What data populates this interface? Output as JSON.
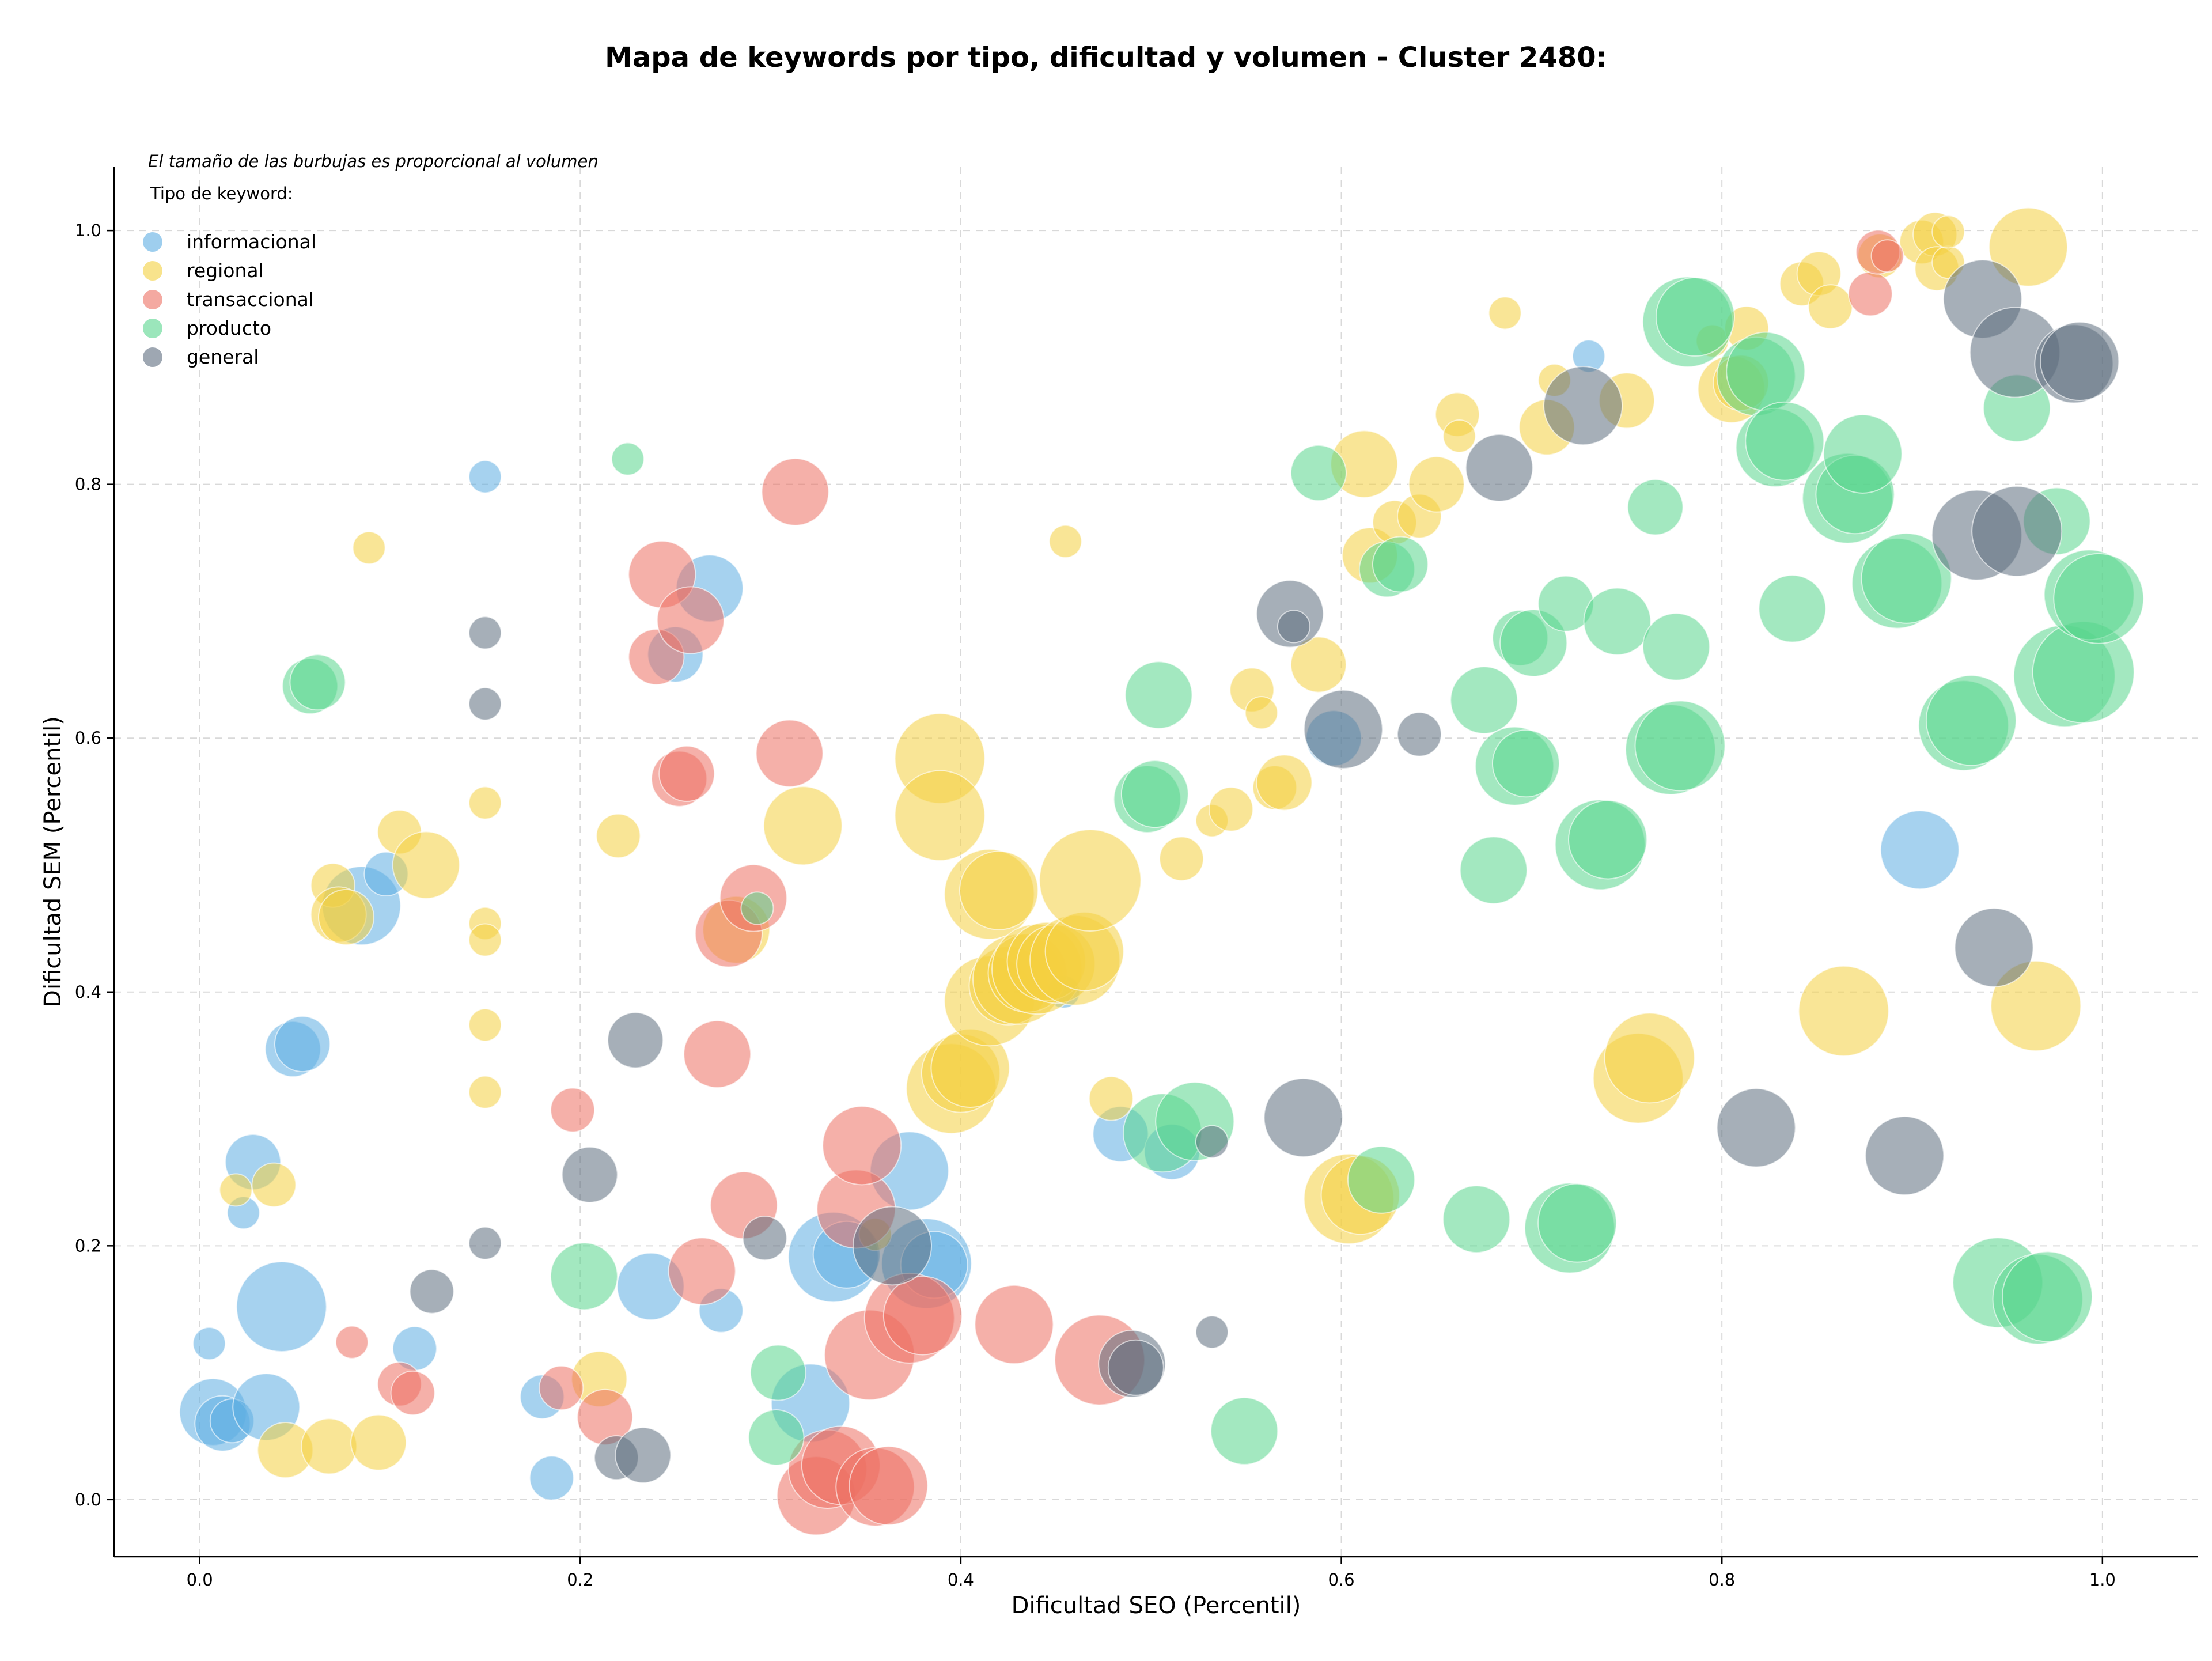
{
  "chart_data": {
    "type": "scatter",
    "title": "Mapa de keywords por tipo, dificultad y volumen - Cluster 2480:",
    "xlabel": "Dificultad SEO (Percentil)",
    "ylabel": "Dificultad SEM (Percentil)",
    "xlim": [
      -0.045,
      1.05
    ],
    "ylim": [
      -0.045,
      1.05
    ],
    "xticks": [
      "0.0",
      "0.2",
      "0.4",
      "0.6",
      "0.8",
      "1.0"
    ],
    "yticks": [
      "0.0",
      "0.2",
      "0.4",
      "0.6",
      "0.8",
      "1.0"
    ],
    "grid": true,
    "note": "El tamaño de las burbujas es proporcional al volumen",
    "legend_title": "Tipo de keyword:",
    "legend_position": "top-left",
    "series": [
      {
        "name": "informacional",
        "color": "#5dade2",
        "points": [
          [
            0.005,
            0.123,
            1
          ],
          [
            0.007,
            0.069,
            4
          ],
          [
            0.012,
            0.06,
            3
          ],
          [
            0.017,
            0.062,
            2
          ],
          [
            0.023,
            0.226,
            1
          ],
          [
            0.028,
            0.266,
            3
          ],
          [
            0.035,
            0.073,
            4
          ],
          [
            0.043,
            0.152,
            6
          ],
          [
            0.049,
            0.355,
            3
          ],
          [
            0.054,
            0.359,
            3
          ],
          [
            0.085,
            0.468,
            5
          ],
          [
            0.098,
            0.493,
            2
          ],
          [
            0.113,
            0.119,
            2
          ],
          [
            0.15,
            0.806,
            1
          ],
          [
            0.18,
            0.081,
            2
          ],
          [
            0.185,
            0.017,
            2
          ],
          [
            0.237,
            0.168,
            4
          ],
          [
            0.25,
            0.666,
            3
          ],
          [
            0.268,
            0.718,
            4
          ],
          [
            0.274,
            0.149,
            2
          ],
          [
            0.321,
            0.076,
            5
          ],
          [
            0.333,
            0.191,
            6
          ],
          [
            0.34,
            0.193,
            4
          ],
          [
            0.373,
            0.259,
            5
          ],
          [
            0.382,
            0.186,
            6
          ],
          [
            0.386,
            0.185,
            4
          ],
          [
            0.454,
            0.4,
            1
          ],
          [
            0.484,
            0.288,
            3
          ],
          [
            0.511,
            0.274,
            3
          ],
          [
            0.596,
            0.6,
            3
          ],
          [
            0.73,
            0.901,
            1
          ],
          [
            0.904,
            0.512,
            5
          ]
        ]
      },
      {
        "name": "regional",
        "color": "#f4d03f",
        "points": [
          [
            0.019,
            0.244,
            1
          ],
          [
            0.039,
            0.248,
            2
          ],
          [
            0.045,
            0.039,
            3
          ],
          [
            0.068,
            0.042,
            3
          ],
          [
            0.07,
            0.484,
            2
          ],
          [
            0.073,
            0.461,
            3
          ],
          [
            0.077,
            0.459,
            3
          ],
          [
            0.089,
            0.75,
            1
          ],
          [
            0.094,
            0.045,
            3
          ],
          [
            0.105,
            0.526,
            2
          ],
          [
            0.119,
            0.5,
            4
          ],
          [
            0.15,
            0.549,
            1
          ],
          [
            0.15,
            0.454,
            1
          ],
          [
            0.15,
            0.441,
            1
          ],
          [
            0.15,
            0.374,
            1
          ],
          [
            0.15,
            0.321,
            1
          ],
          [
            0.21,
            0.095,
            3
          ],
          [
            0.22,
            0.523,
            2
          ],
          [
            0.282,
            0.449,
            4
          ],
          [
            0.317,
            0.531,
            5
          ],
          [
            0.355,
            0.209,
            1
          ],
          [
            0.389,
            0.584,
            6
          ],
          [
            0.389,
            0.539,
            6
          ],
          [
            0.395,
            0.324,
            6
          ],
          [
            0.4,
            0.336,
            5
          ],
          [
            0.405,
            0.34,
            5
          ],
          [
            0.415,
            0.393,
            6
          ],
          [
            0.415,
            0.477,
            6
          ],
          [
            0.42,
            0.48,
            5
          ],
          [
            0.425,
            0.405,
            5
          ],
          [
            0.43,
            0.41,
            6
          ],
          [
            0.435,
            0.415,
            5
          ],
          [
            0.44,
            0.418,
            6
          ],
          [
            0.445,
            0.424,
            5
          ],
          [
            0.45,
            0.422,
            5
          ],
          [
            0.455,
            0.755,
            1
          ],
          [
            0.46,
            0.425,
            6
          ],
          [
            0.465,
            0.432,
            5
          ],
          [
            0.468,
            0.488,
            7
          ],
          [
            0.479,
            0.316,
            2
          ],
          [
            0.516,
            0.505,
            2
          ],
          [
            0.532,
            0.535,
            1
          ],
          [
            0.542,
            0.544,
            2
          ],
          [
            0.553,
            0.638,
            2
          ],
          [
            0.558,
            0.62,
            1
          ],
          [
            0.565,
            0.561,
            2
          ],
          [
            0.57,
            0.565,
            3
          ],
          [
            0.588,
            0.658,
            3
          ],
          [
            0.604,
            0.237,
            6
          ],
          [
            0.61,
            0.24,
            5
          ],
          [
            0.612,
            0.816,
            4
          ],
          [
            0.615,
            0.744,
            3
          ],
          [
            0.628,
            0.77,
            2
          ],
          [
            0.641,
            0.775,
            2
          ],
          [
            0.65,
            0.8,
            3
          ],
          [
            0.661,
            0.855,
            2
          ],
          [
            0.662,
            0.838,
            1
          ],
          [
            0.686,
            0.935,
            1
          ],
          [
            0.712,
            0.882,
            1
          ],
          [
            0.708,
            0.845,
            3
          ],
          [
            0.75,
            0.866,
            3
          ],
          [
            0.756,
            0.332,
            6
          ],
          [
            0.762,
            0.348,
            6
          ],
          [
            0.795,
            0.913,
            1
          ],
          [
            0.805,
            0.875,
            4
          ],
          [
            0.81,
            0.88,
            3
          ],
          [
            0.813,
            0.923,
            2
          ],
          [
            0.842,
            0.958,
            2
          ],
          [
            0.851,
            0.966,
            2
          ],
          [
            0.857,
            0.94,
            2
          ],
          [
            0.864,
            0.385,
            6
          ],
          [
            0.883,
            0.98,
            2
          ],
          [
            0.905,
            0.991,
            2
          ],
          [
            0.912,
            0.997,
            2
          ],
          [
            0.913,
            0.97,
            2
          ],
          [
            0.919,
            0.975,
            1
          ],
          [
            0.919,
            0.999,
            1
          ],
          [
            0.961,
            0.987,
            5
          ],
          [
            0.965,
            0.389,
            6
          ]
        ]
      },
      {
        "name": "transaccional",
        "color": "#ec7063",
        "points": [
          [
            0.08,
            0.124,
            1
          ],
          [
            0.105,
            0.091,
            2
          ],
          [
            0.112,
            0.084,
            2
          ],
          [
            0.19,
            0.088,
            2
          ],
          [
            0.196,
            0.307,
            2
          ],
          [
            0.213,
            0.065,
            3
          ],
          [
            0.243,
            0.729,
            4
          ],
          [
            0.24,
            0.664,
            3
          ],
          [
            0.258,
            0.693,
            4
          ],
          [
            0.252,
            0.568,
            3
          ],
          [
            0.256,
            0.572,
            3
          ],
          [
            0.264,
            0.18,
            4
          ],
          [
            0.272,
            0.351,
            4
          ],
          [
            0.278,
            0.446,
            4
          ],
          [
            0.286,
            0.232,
            4
          ],
          [
            0.291,
            0.474,
            4
          ],
          [
            0.31,
            0.588,
            4
          ],
          [
            0.313,
            0.794,
            4
          ],
          [
            0.324,
            0.003,
            5
          ],
          [
            0.33,
            0.024,
            5
          ],
          [
            0.337,
            0.027,
            5
          ],
          [
            0.345,
            0.229,
            5
          ],
          [
            0.348,
            0.279,
            5
          ],
          [
            0.352,
            0.114,
            6
          ],
          [
            0.355,
            0.01,
            5
          ],
          [
            0.362,
            0.011,
            5
          ],
          [
            0.373,
            0.143,
            6
          ],
          [
            0.38,
            0.145,
            5
          ],
          [
            0.428,
            0.138,
            5
          ],
          [
            0.473,
            0.11,
            6
          ],
          [
            0.878,
            0.95,
            2
          ],
          [
            0.882,
            0.983,
            2
          ],
          [
            0.887,
            0.98,
            1
          ]
        ]
      },
      {
        "name": "producto",
        "color": "#58d68d",
        "points": [
          [
            0.058,
            0.641,
            3
          ],
          [
            0.062,
            0.644,
            3
          ],
          [
            0.225,
            0.82,
            1
          ],
          [
            0.202,
            0.176,
            4
          ],
          [
            0.293,
            0.466,
            1
          ],
          [
            0.303,
            0.049,
            3
          ],
          [
            0.304,
            0.1,
            3
          ],
          [
            0.498,
            0.552,
            4
          ],
          [
            0.502,
            0.556,
            4
          ],
          [
            0.506,
            0.289,
            5
          ],
          [
            0.504,
            0.634,
            4
          ],
          [
            0.523,
            0.298,
            5
          ],
          [
            0.549,
            0.054,
            4
          ],
          [
            0.588,
            0.809,
            3
          ],
          [
            0.621,
            0.252,
            4
          ],
          [
            0.624,
            0.733,
            3
          ],
          [
            0.631,
            0.737,
            3
          ],
          [
            0.671,
            0.221,
            4
          ],
          [
            0.675,
            0.63,
            4
          ],
          [
            0.68,
            0.496,
            4
          ],
          [
            0.691,
            0.578,
            5
          ],
          [
            0.694,
            0.679,
            3
          ],
          [
            0.697,
            0.58,
            4
          ],
          [
            0.701,
            0.675,
            4
          ],
          [
            0.718,
            0.706,
            3
          ],
          [
            0.72,
            0.214,
            6
          ],
          [
            0.724,
            0.218,
            5
          ],
          [
            0.736,
            0.516,
            6
          ],
          [
            0.74,
            0.52,
            5
          ],
          [
            0.745,
            0.692,
            4
          ],
          [
            0.765,
            0.782,
            3
          ],
          [
            0.773,
            0.591,
            6
          ],
          [
            0.776,
            0.672,
            4
          ],
          [
            0.778,
            0.594,
            6
          ],
          [
            0.782,
            0.928,
            6
          ],
          [
            0.786,
            0.932,
            5
          ],
          [
            0.818,
            0.885,
            5
          ],
          [
            0.823,
            0.889,
            5
          ],
          [
            0.828,
            0.829,
            5
          ],
          [
            0.833,
            0.834,
            5
          ],
          [
            0.837,
            0.702,
            4
          ],
          [
            0.866,
            0.789,
            6
          ],
          [
            0.87,
            0.792,
            5
          ],
          [
            0.874,
            0.824,
            5
          ],
          [
            0.892,
            0.722,
            6
          ],
          [
            0.897,
            0.726,
            6
          ],
          [
            0.927,
            0.61,
            6
          ],
          [
            0.931,
            0.614,
            6
          ],
          [
            0.945,
            0.171,
            6
          ],
          [
            0.955,
            0.86,
            4
          ],
          [
            0.966,
            0.158,
            6
          ],
          [
            0.971,
            0.16,
            6
          ],
          [
            0.976,
            0.771,
            4
          ],
          [
            0.98,
            0.649,
            7
          ],
          [
            0.99,
            0.652,
            7
          ],
          [
            0.993,
            0.713,
            6
          ],
          [
            0.998,
            0.71,
            6
          ]
        ]
      },
      {
        "name": "general",
        "color": "#5d6d7e",
        "points": [
          [
            0.15,
            0.683,
            1
          ],
          [
            0.15,
            0.627,
            1
          ],
          [
            0.15,
            0.202,
            1
          ],
          [
            0.122,
            0.164,
            2
          ],
          [
            0.205,
            0.256,
            3
          ],
          [
            0.219,
            0.033,
            2
          ],
          [
            0.229,
            0.362,
            3
          ],
          [
            0.233,
            0.035,
            3
          ],
          [
            0.297,
            0.206,
            2
          ],
          [
            0.364,
            0.2,
            5
          ],
          [
            0.49,
            0.107,
            4
          ],
          [
            0.492,
            0.104,
            3
          ],
          [
            0.532,
            0.282,
            1
          ],
          [
            0.532,
            0.132,
            1
          ],
          [
            0.573,
            0.698,
            4
          ],
          [
            0.575,
            0.688,
            1
          ],
          [
            0.58,
            0.301,
            5
          ],
          [
            0.601,
            0.607,
            5
          ],
          [
            0.641,
            0.603,
            2
          ],
          [
            0.683,
            0.813,
            4
          ],
          [
            0.727,
            0.862,
            5
          ],
          [
            0.818,
            0.293,
            5
          ],
          [
            0.896,
            0.271,
            5
          ],
          [
            0.934,
            0.76,
            6
          ],
          [
            0.937,
            0.946,
            5
          ],
          [
            0.954,
            0.904,
            6
          ],
          [
            0.955,
            0.763,
            6
          ],
          [
            0.943,
            0.435,
            5
          ],
          [
            0.985,
            0.895,
            5
          ],
          [
            0.988,
            0.897,
            5
          ]
        ]
      }
    ]
  }
}
